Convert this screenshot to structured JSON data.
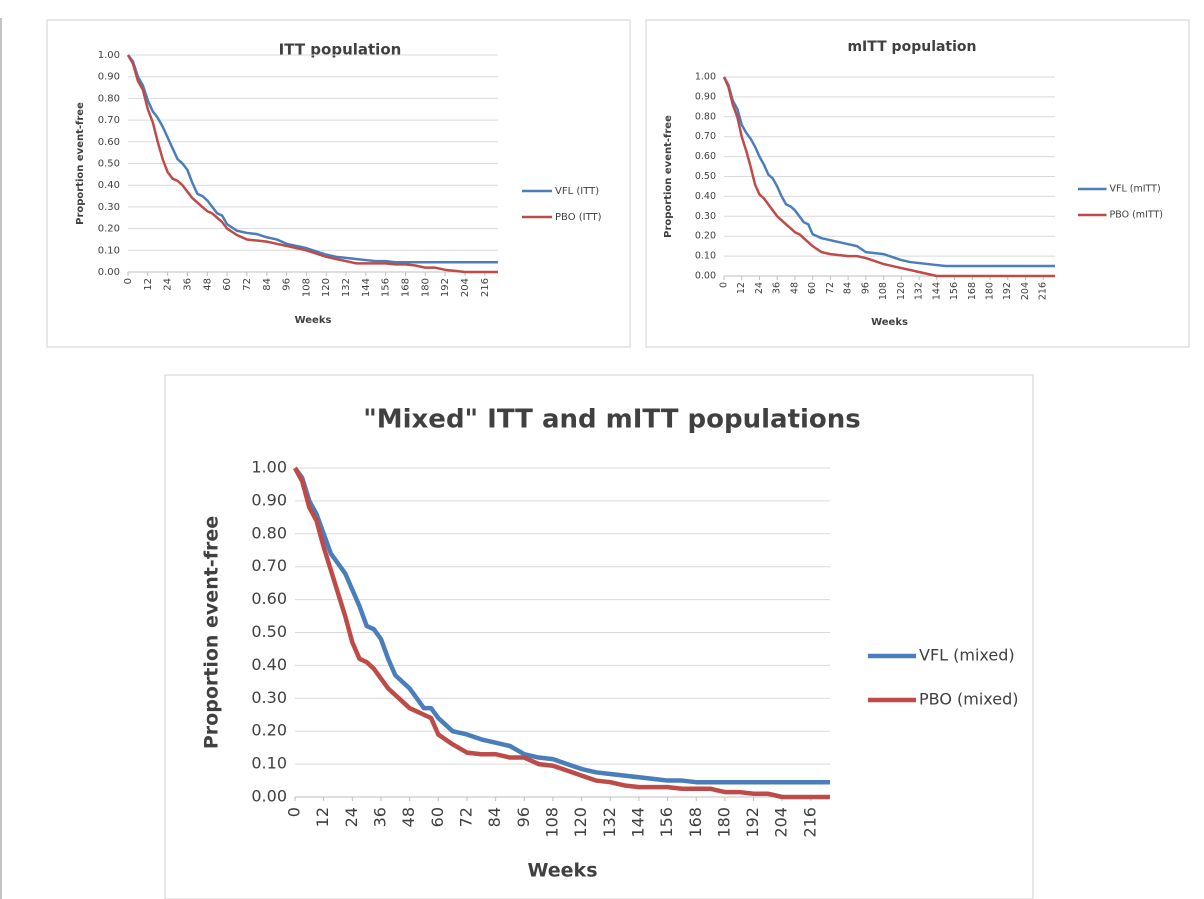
{
  "chart_data": [
    {
      "type": "line",
      "title": "ITT population",
      "x_label": "Weeks",
      "y_label": "Proportion event-free",
      "x": [
        0,
        3,
        6,
        9,
        12,
        15,
        18,
        21,
        24,
        27,
        30,
        33,
        36,
        39,
        42,
        45,
        48,
        51,
        54,
        57,
        60,
        66,
        72,
        78,
        84,
        90,
        96,
        102,
        108,
        114,
        120,
        126,
        132,
        138,
        144,
        150,
        156,
        162,
        168,
        174,
        180,
        186,
        192,
        198,
        204,
        210,
        216,
        224
      ],
      "series": [
        {
          "name": "VFL (ITT)",
          "color": "#4a7ebb",
          "values": [
            1.0,
            0.97,
            0.9,
            0.86,
            0.79,
            0.74,
            0.71,
            0.67,
            0.62,
            0.57,
            0.52,
            0.5,
            0.47,
            0.41,
            0.36,
            0.35,
            0.33,
            0.3,
            0.27,
            0.26,
            0.22,
            0.19,
            0.18,
            0.175,
            0.16,
            0.15,
            0.13,
            0.12,
            0.11,
            0.095,
            0.08,
            0.07,
            0.065,
            0.06,
            0.055,
            0.05,
            0.05,
            0.045,
            0.045,
            0.045,
            0.045,
            0.045,
            0.045,
            0.045,
            0.045,
            0.045,
            0.045,
            0.045
          ]
        },
        {
          "name": "PBO (ITT)",
          "color": "#be4b48",
          "values": [
            1.0,
            0.96,
            0.88,
            0.84,
            0.75,
            0.69,
            0.6,
            0.52,
            0.46,
            0.43,
            0.42,
            0.4,
            0.37,
            0.34,
            0.32,
            0.3,
            0.28,
            0.27,
            0.25,
            0.23,
            0.2,
            0.17,
            0.15,
            0.145,
            0.14,
            0.13,
            0.12,
            0.11,
            0.1,
            0.085,
            0.07,
            0.06,
            0.05,
            0.04,
            0.04,
            0.04,
            0.04,
            0.035,
            0.035,
            0.03,
            0.02,
            0.02,
            0.01,
            0.005,
            0.0,
            0.0,
            0.0,
            0.0
          ]
        }
      ],
      "xlim": [
        0,
        224
      ],
      "ylim": [
        0,
        1
      ],
      "xticks": [
        0,
        12,
        24,
        36,
        48,
        60,
        72,
        84,
        96,
        108,
        120,
        132,
        144,
        156,
        168,
        180,
        192,
        204,
        216
      ],
      "yticks": [
        {
          "value": 0,
          "label": "0.00"
        },
        {
          "value": 0.1,
          "label": "0.10"
        },
        {
          "value": 0.2,
          "label": "0.20"
        },
        {
          "value": 0.3,
          "label": "0.30"
        },
        {
          "value": 0.4,
          "label": "0.40"
        },
        {
          "value": 0.5,
          "label": "0.50"
        },
        {
          "value": 0.6,
          "label": "0.60"
        },
        {
          "value": 0.7,
          "label": "0.70"
        },
        {
          "value": 0.8,
          "label": "0.80"
        },
        {
          "value": 0.9,
          "label": "0.90"
        },
        {
          "value": 1,
          "label": "1.00"
        }
      ],
      "grid": true,
      "legend": "right"
    },
    {
      "type": "line",
      "title": "mITT population",
      "x_label": "Weeks",
      "y_label": "Proportion event-free",
      "x": [
        0,
        3,
        6,
        9,
        12,
        15,
        18,
        21,
        24,
        27,
        30,
        33,
        36,
        39,
        42,
        45,
        48,
        51,
        54,
        57,
        60,
        66,
        72,
        78,
        84,
        90,
        96,
        102,
        108,
        114,
        120,
        126,
        132,
        138,
        144,
        150,
        156,
        162,
        168,
        174,
        180,
        186,
        192,
        198,
        204,
        210,
        216,
        224
      ],
      "series": [
        {
          "name": "VFL (mITT)",
          "color": "#4a7ebb",
          "values": [
            1.0,
            0.96,
            0.88,
            0.84,
            0.76,
            0.72,
            0.69,
            0.65,
            0.6,
            0.56,
            0.51,
            0.49,
            0.45,
            0.4,
            0.36,
            0.35,
            0.33,
            0.3,
            0.27,
            0.26,
            0.21,
            0.19,
            0.18,
            0.17,
            0.16,
            0.15,
            0.12,
            0.115,
            0.11,
            0.095,
            0.08,
            0.07,
            0.065,
            0.06,
            0.055,
            0.05,
            0.05,
            0.05,
            0.05,
            0.05,
            0.05,
            0.05,
            0.05,
            0.05,
            0.05,
            0.05,
            0.05,
            0.05
          ]
        },
        {
          "name": "PBO (mITT)",
          "color": "#be4b48",
          "values": [
            1.0,
            0.95,
            0.86,
            0.8,
            0.7,
            0.63,
            0.55,
            0.46,
            0.41,
            0.39,
            0.36,
            0.33,
            0.3,
            0.28,
            0.26,
            0.24,
            0.22,
            0.21,
            0.19,
            0.17,
            0.15,
            0.12,
            0.11,
            0.105,
            0.1,
            0.1,
            0.09,
            0.075,
            0.06,
            0.05,
            0.04,
            0.03,
            0.02,
            0.01,
            0.0,
            0.0,
            0.0,
            0.0,
            0.0,
            0.0,
            0.0,
            0.0,
            0.0,
            0.0,
            0.0,
            0.0,
            0.0,
            0.0
          ]
        }
      ],
      "xlim": [
        0,
        224
      ],
      "ylim": [
        0,
        1
      ],
      "xticks": [
        0,
        12,
        24,
        36,
        48,
        60,
        72,
        84,
        96,
        108,
        120,
        132,
        144,
        156,
        168,
        180,
        192,
        204,
        216
      ],
      "yticks": [
        {
          "value": 0,
          "label": "0.00"
        },
        {
          "value": 0.1,
          "label": "0.10"
        },
        {
          "value": 0.2,
          "label": "0.20"
        },
        {
          "value": 0.3,
          "label": "0.30"
        },
        {
          "value": 0.4,
          "label": "0.40"
        },
        {
          "value": 0.5,
          "label": "0.50"
        },
        {
          "value": 0.6,
          "label": "0.60"
        },
        {
          "value": 0.7,
          "label": "0.70"
        },
        {
          "value": 0.8,
          "label": "0.80"
        },
        {
          "value": 0.9,
          "label": "0.90"
        },
        {
          "value": 1,
          "label": "1.00"
        }
      ],
      "grid": true,
      "legend": "right"
    },
    {
      "type": "line",
      "title": "\"Mixed\" ITT and mITT populations",
      "x_label": "Weeks",
      "y_label": "Proportion event-free",
      "x": [
        0,
        3,
        6,
        9,
        12,
        15,
        18,
        21,
        24,
        27,
        30,
        33,
        36,
        39,
        42,
        45,
        48,
        51,
        54,
        57,
        60,
        66,
        72,
        78,
        84,
        90,
        96,
        102,
        108,
        114,
        120,
        126,
        132,
        138,
        144,
        150,
        156,
        162,
        168,
        174,
        180,
        186,
        192,
        198,
        204,
        210,
        216,
        224
      ],
      "series": [
        {
          "name": "VFL (mixed)",
          "color": "#4a7ebb",
          "values": [
            1.0,
            0.97,
            0.9,
            0.86,
            0.8,
            0.74,
            0.71,
            0.68,
            0.63,
            0.58,
            0.52,
            0.51,
            0.48,
            0.42,
            0.37,
            0.35,
            0.33,
            0.3,
            0.27,
            0.27,
            0.24,
            0.2,
            0.19,
            0.175,
            0.165,
            0.155,
            0.13,
            0.12,
            0.115,
            0.1,
            0.085,
            0.075,
            0.07,
            0.065,
            0.06,
            0.055,
            0.05,
            0.05,
            0.045,
            0.045,
            0.045,
            0.045,
            0.045,
            0.045,
            0.045,
            0.045,
            0.045,
            0.045
          ]
        },
        {
          "name": "PBO (mixed)",
          "color": "#be4b48",
          "values": [
            1.0,
            0.96,
            0.88,
            0.84,
            0.76,
            0.69,
            0.62,
            0.55,
            0.47,
            0.42,
            0.41,
            0.39,
            0.36,
            0.33,
            0.31,
            0.29,
            0.27,
            0.26,
            0.25,
            0.24,
            0.19,
            0.16,
            0.135,
            0.13,
            0.13,
            0.12,
            0.12,
            0.1,
            0.095,
            0.08,
            0.065,
            0.05,
            0.045,
            0.035,
            0.03,
            0.03,
            0.03,
            0.025,
            0.025,
            0.025,
            0.015,
            0.015,
            0.01,
            0.01,
            0.0,
            0.0,
            0.0,
            0.0
          ]
        }
      ],
      "xlim": [
        0,
        224
      ],
      "ylim": [
        0,
        1
      ],
      "xticks": [
        0,
        12,
        24,
        36,
        48,
        60,
        72,
        84,
        96,
        108,
        120,
        132,
        144,
        156,
        168,
        180,
        192,
        204,
        216
      ],
      "yticks": [
        {
          "value": 0,
          "label": "0.00"
        },
        {
          "value": 0.1,
          "label": "0.10"
        },
        {
          "value": 0.2,
          "label": "0.20"
        },
        {
          "value": 0.3,
          "label": "0.30"
        },
        {
          "value": 0.4,
          "label": "0.40"
        },
        {
          "value": 0.5,
          "label": "0.50"
        },
        {
          "value": 0.6,
          "label": "0.60"
        },
        {
          "value": 0.7,
          "label": "0.70"
        },
        {
          "value": 0.8,
          "label": "0.80"
        },
        {
          "value": 0.9,
          "label": "0.90"
        },
        {
          "value": 1,
          "label": "1.00"
        }
      ],
      "grid": true,
      "legend": "right"
    }
  ]
}
